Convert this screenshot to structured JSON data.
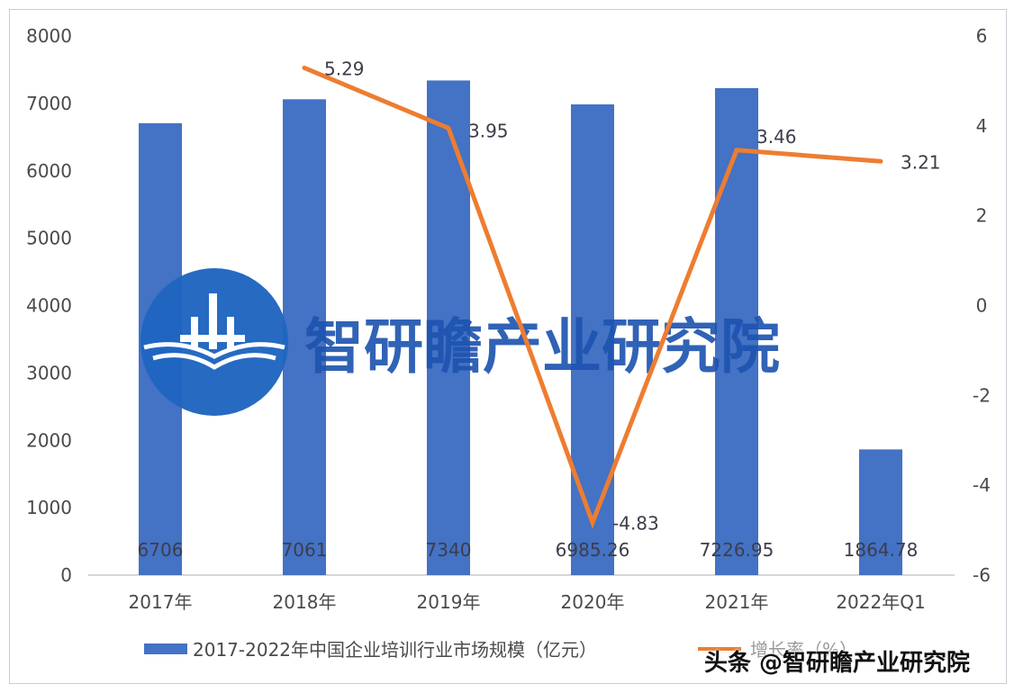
{
  "chart_data": {
    "type": "bar+line",
    "title": "",
    "categories": [
      "2017年",
      "2018年",
      "2019年",
      "2020年",
      "2021年",
      "2022年Q1"
    ],
    "series": [
      {
        "name": "2017-2022年中国企业培训行业市场规模（亿元）",
        "type": "bar",
        "axis": "left",
        "color": "#4472c4",
        "values": [
          6706,
          7061,
          7340,
          6985.26,
          7226.95,
          1864.78
        ],
        "labels": [
          "6706",
          "7061",
          "7340",
          "6985.26",
          "7226.95",
          "1864.78"
        ]
      },
      {
        "name": "增长率（%）",
        "type": "line",
        "axis": "right",
        "color": "#ed7d31",
        "values": [
          null,
          5.29,
          3.95,
          -4.83,
          3.46,
          3.21
        ],
        "labels": [
          "",
          "5.29",
          "3.95",
          "-4.83",
          "3.46",
          "3.21"
        ]
      }
    ],
    "left_axis": {
      "ylim": [
        0,
        8000
      ],
      "ticks": [
        "0",
        "1000",
        "2000",
        "3000",
        "4000",
        "5000",
        "6000",
        "7000",
        "8000"
      ]
    },
    "right_axis": {
      "ylim": [
        -6,
        6
      ],
      "ticks": [
        "-6",
        "-4",
        "-2",
        "0",
        "2",
        "4",
        "6"
      ]
    },
    "xlabel": "",
    "ylabel": "",
    "grid": false,
    "legend_position": "bottom"
  },
  "legend": {
    "bar_label": "2017-2022年中国企业培训行业市场规模（亿元）",
    "line_label": "增长率（%）"
  },
  "logo": {
    "text": "智研瞻产业研究院"
  },
  "watermark": {
    "text": "头条 @智研瞻产业研究院"
  }
}
